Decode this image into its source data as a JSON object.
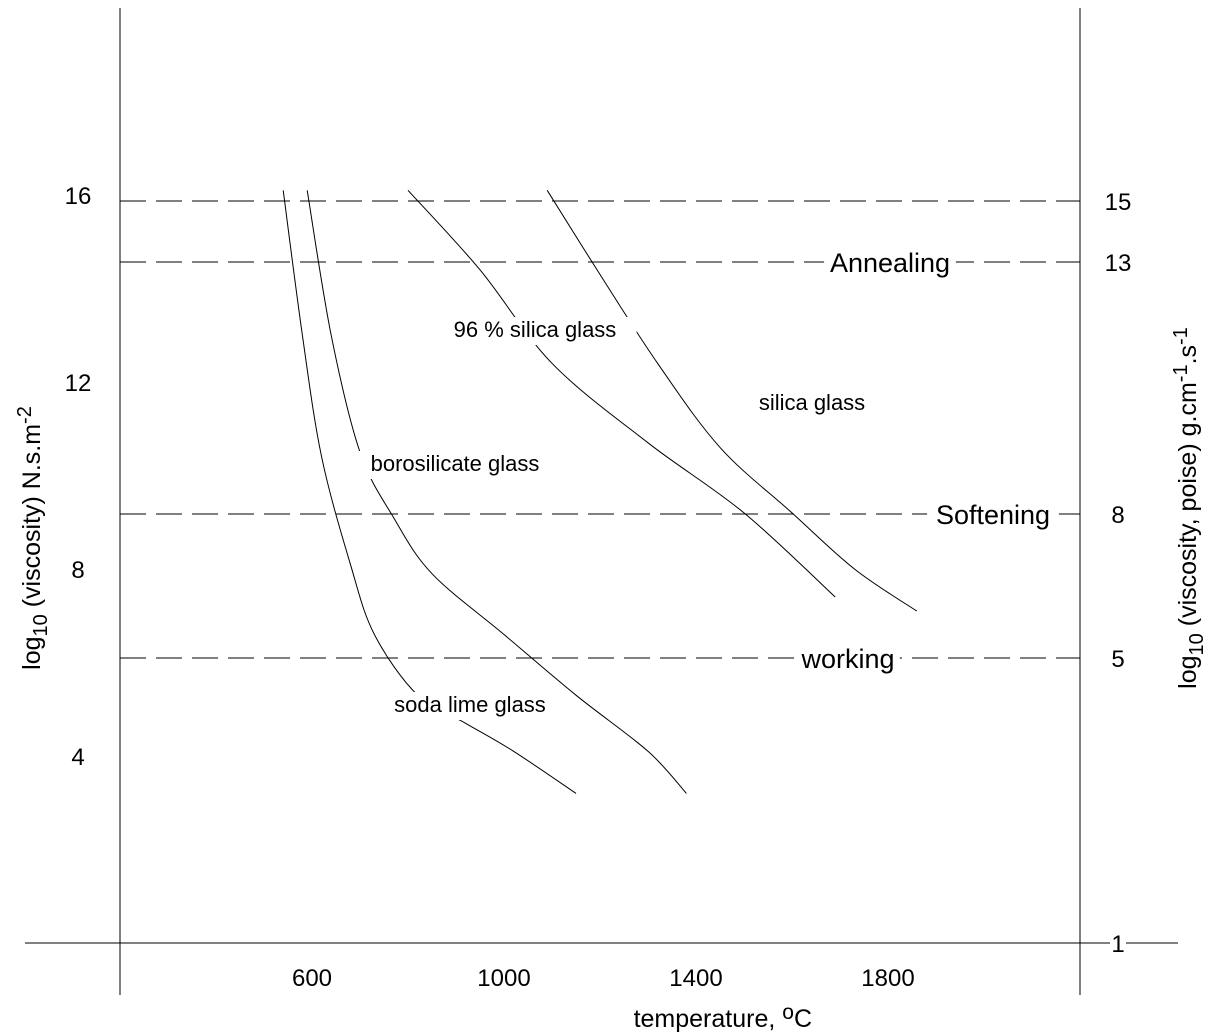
{
  "chart_data": {
    "type": "line",
    "xlabel": {
      "text": "temperature, ",
      "sup": "o",
      "tail": "C"
    },
    "ylabel_left": {
      "prefix": "log",
      "sub": "10",
      "mid": " (viscosity) N.s.m",
      "sup": "-2"
    },
    "ylabel_right": {
      "prefix": "log",
      "sub": "10",
      "mid": " (viscosity, poise) g.cm",
      "sup1": "-1",
      "mid2": ".s",
      "sup2": "-1"
    },
    "x_ticks": [
      {
        "value": 600,
        "label": "600"
      },
      {
        "value": 1000,
        "label": "1000"
      },
      {
        "value": 1400,
        "label": "1400"
      },
      {
        "value": 1800,
        "label": "1800"
      }
    ],
    "y_left_ticks": [
      {
        "value": 16,
        "label": "16"
      },
      {
        "value": 12,
        "label": "12"
      },
      {
        "value": 8,
        "label": "8"
      },
      {
        "value": 4,
        "label": "4"
      }
    ],
    "y_right_ticks": [
      {
        "value": 15,
        "label": "15"
      },
      {
        "value": 13,
        "label": "13"
      },
      {
        "value": 8,
        "label": "8"
      },
      {
        "value": 5,
        "label": "5"
      },
      {
        "value": 1,
        "label": "1"
      }
    ],
    "reference_lines": [
      {
        "y": 15,
        "label": ""
      },
      {
        "y": 13,
        "label": "Annealing"
      },
      {
        "y": 8,
        "label": "Softening"
      },
      {
        "y": 5,
        "label": "working"
      }
    ],
    "series": [
      {
        "name": "soda lime glass",
        "x": [
          540,
          580,
          620,
          680,
          730,
          820,
          920,
          1020,
          1150
        ],
        "y": [
          16.1,
          13.0,
          10.4,
          8.1,
          6.6,
          5.3,
          4.7,
          4.1,
          3.2
        ]
      },
      {
        "name": "borosilicate glass",
        "x": [
          590,
          640,
          700,
          770,
          850,
          1000,
          1150,
          1300,
          1380
        ],
        "y": [
          16.1,
          13.0,
          10.5,
          9.1,
          7.9,
          6.6,
          5.3,
          4.1,
          3.2
        ]
      },
      {
        "name": "96 % silica glass",
        "x": [
          800,
          950,
          1100,
          1300,
          1500,
          1690
        ],
        "y": [
          16.1,
          14.4,
          12.4,
          10.7,
          9.2,
          7.4
        ]
      },
      {
        "name": "silica glass",
        "x": [
          1090,
          1200,
          1320,
          1450,
          1600,
          1730,
          1860
        ],
        "y": [
          16.1,
          14.3,
          12.4,
          10.6,
          9.2,
          8.0,
          7.1
        ]
      }
    ],
    "xlim": [
      200,
      2200
    ],
    "ylim_left": [
      0,
      20
    ],
    "grid": false
  }
}
